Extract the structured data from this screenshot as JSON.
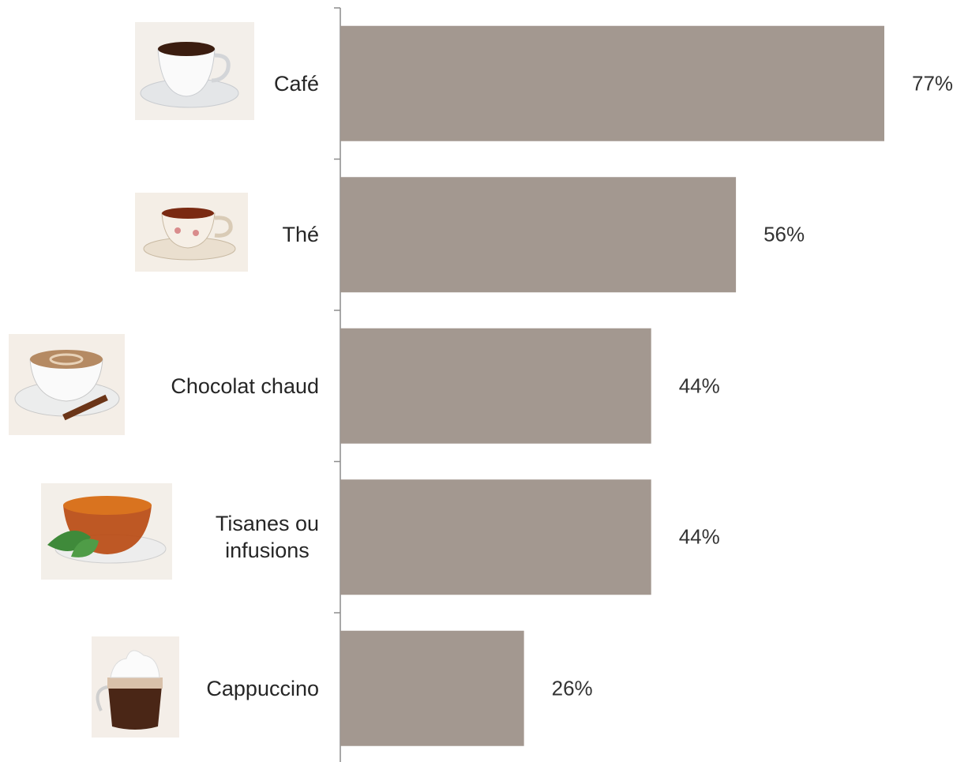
{
  "chart_data": {
    "type": "bar",
    "orientation": "horizontal",
    "categories": [
      "Café",
      "Thé",
      "Chocolat chaud",
      "Tisanes ou\ninfusions",
      "Cappuccino"
    ],
    "values": [
      77,
      56,
      44,
      44,
      26
    ],
    "value_labels": [
      "77%",
      "56%",
      "44%",
      "44%",
      "26%"
    ],
    "color": "#a39890"
  }
}
